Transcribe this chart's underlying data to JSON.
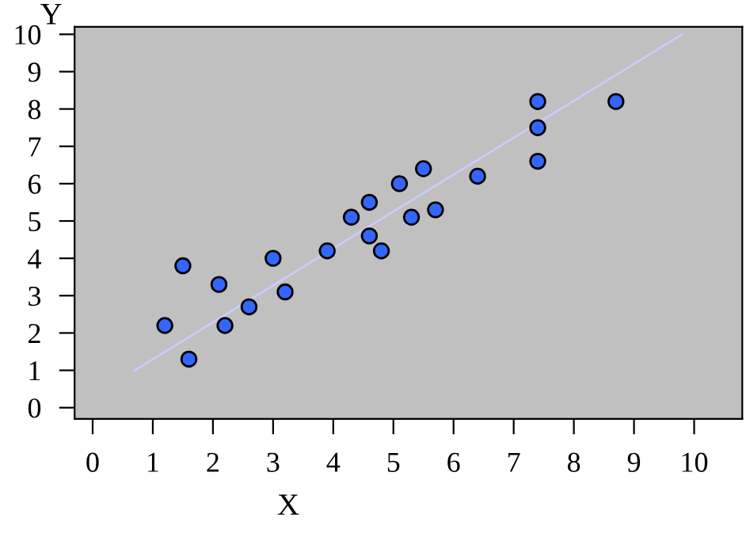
{
  "chart_data": {
    "type": "scatter",
    "xlabel": "X",
    "ylabel": "Y",
    "xlim": [
      -0.3,
      10.8
    ],
    "ylim": [
      -0.3,
      10.2
    ],
    "xticks": [
      0,
      1,
      2,
      3,
      4,
      5,
      6,
      7,
      8,
      9,
      10
    ],
    "yticks": [
      0,
      1,
      2,
      3,
      4,
      5,
      6,
      7,
      8,
      9,
      10
    ],
    "grid": false,
    "series": [
      {
        "marker": "circle",
        "color": "#3366ff",
        "x": [
          1.2,
          1.6,
          1.5,
          2.1,
          2.2,
          2.6,
          3.0,
          3.2,
          3.9,
          4.3,
          4.6,
          4.6,
          4.8,
          5.1,
          5.3,
          5.5,
          5.7,
          6.4,
          7.4,
          7.4,
          7.4,
          8.7
        ],
        "values": [
          2.2,
          1.3,
          3.8,
          3.3,
          2.2,
          2.7,
          4.0,
          3.1,
          4.2,
          5.1,
          5.5,
          4.6,
          4.2,
          6.0,
          5.1,
          6.4,
          5.3,
          6.2,
          8.2,
          7.5,
          6.6,
          8.2
        ]
      },
      {
        "type": "line",
        "marker": "none",
        "color": "#ccccff",
        "x": [
          0.7,
          9.8
        ],
        "values": [
          1.0,
          10.0
        ]
      }
    ]
  }
}
